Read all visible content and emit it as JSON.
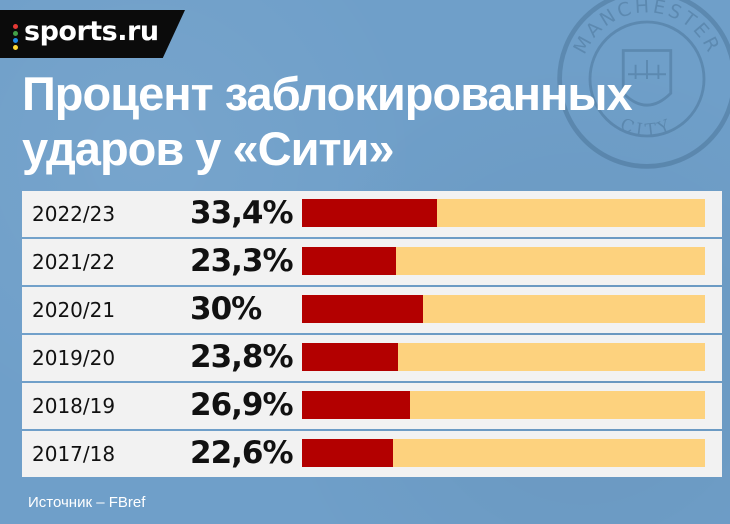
{
  "logo": {
    "text": "sports.ru",
    "dot_colors": [
      "#e53935",
      "#43a047",
      "#1e88e5",
      "#fdd835"
    ]
  },
  "crest": {
    "top_text": "MANCHESTER",
    "bottom_text": "CITY"
  },
  "title": {
    "line1": "Процент заблокированных",
    "line2": "ударов у «Сити»"
  },
  "colors": {
    "background": "#6f9fc9",
    "bar_fill": "#b30000",
    "bar_track": "#fdd27e",
    "row": "#f2f2f2"
  },
  "chart_data": {
    "type": "bar",
    "orientation": "horizontal",
    "title": "Процент заблокированных ударов у «Сити»",
    "categories": [
      "2022/23",
      "2021/22",
      "2020/21",
      "2019/20",
      "2018/19",
      "2017/18"
    ],
    "labels": [
      "33,4%",
      "23,3%",
      "30%",
      "23,8%",
      "26,9%",
      "22,6%"
    ],
    "values": [
      33.4,
      23.3,
      30,
      23.8,
      26.9,
      22.6
    ],
    "xlim": [
      0,
      100
    ]
  },
  "source": "Источник – FBref"
}
